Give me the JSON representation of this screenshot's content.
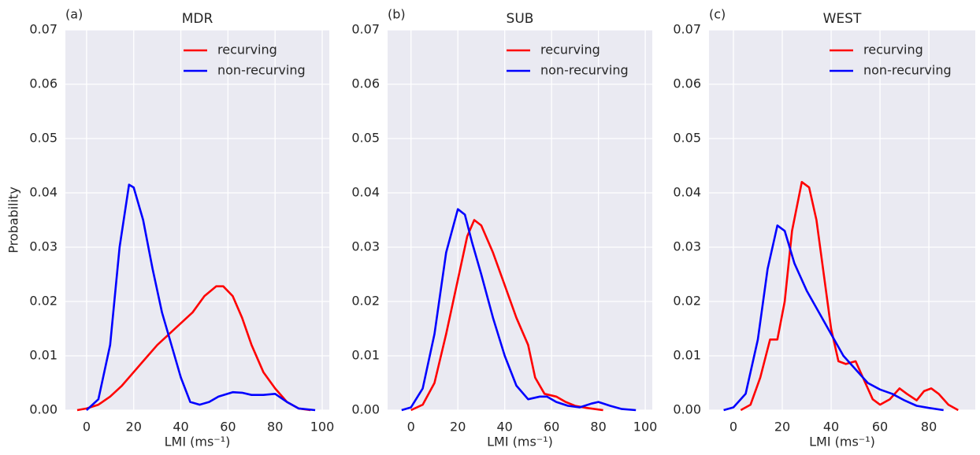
{
  "chart_data": [
    {
      "type": "line",
      "panel_label": "(a)",
      "title": "MDR",
      "xlabel": "LMI (ms⁻¹)",
      "ylabel": "Probability",
      "xlim": [
        -9,
        103
      ],
      "xticks": [
        0,
        20,
        40,
        60,
        80,
        100
      ],
      "ylim": [
        0,
        0.07
      ],
      "yticks": [
        {
          "value": 0,
          "label": "0.00"
        },
        0.01,
        0.02,
        0.03,
        0.04,
        0.05,
        0.06,
        0.07
      ],
      "grid": true,
      "legend": "upper right",
      "series": [
        {
          "name": "recurving",
          "color": "#ff0000",
          "x": [
            -4,
            0,
            5,
            10,
            15,
            20,
            25,
            30,
            35,
            40,
            45,
            50,
            55,
            58,
            62,
            66,
            70,
            75,
            80,
            85,
            90,
            95
          ],
          "values": [
            0,
            0.0003,
            0.001,
            0.0025,
            0.0045,
            0.007,
            0.0095,
            0.012,
            0.014,
            0.016,
            0.018,
            0.021,
            0.0228,
            0.0228,
            0.021,
            0.017,
            0.012,
            0.007,
            0.004,
            0.0015,
            0.0003,
            0
          ]
        },
        {
          "name": "non-recurving",
          "color": "#0000ff",
          "x": [
            0,
            5,
            10,
            14,
            18,
            20,
            24,
            28,
            32,
            36,
            40,
            44,
            48,
            52,
            56,
            62,
            66,
            70,
            75,
            80,
            85,
            90,
            97
          ],
          "values": [
            0,
            0.002,
            0.012,
            0.03,
            0.0415,
            0.041,
            0.035,
            0.026,
            0.018,
            0.012,
            0.006,
            0.0015,
            0.001,
            0.0015,
            0.0025,
            0.0033,
            0.0032,
            0.0028,
            0.0028,
            0.003,
            0.0015,
            0.0003,
            0
          ]
        }
      ]
    },
    {
      "type": "line",
      "panel_label": "(b)",
      "title": "SUB",
      "xlabel": "LMI (ms⁻¹)",
      "xlim": [
        -10,
        103
      ],
      "xticks": [
        0,
        20,
        40,
        60,
        80,
        100
      ],
      "ylim": [
        0,
        0.07
      ],
      "yticks": [
        {
          "value": 0,
          "label": "0.00"
        },
        0.01,
        0.02,
        0.03,
        0.04,
        0.05,
        0.06,
        0.07
      ],
      "grid": true,
      "legend": "upper right",
      "series": [
        {
          "name": "recurving",
          "color": "#ff0000",
          "x": [
            0,
            5,
            10,
            15,
            20,
            24,
            27,
            30,
            35,
            40,
            45,
            50,
            53,
            57,
            62,
            66,
            70,
            75,
            82
          ],
          "values": [
            0,
            0.001,
            0.005,
            0.014,
            0.024,
            0.032,
            0.035,
            0.034,
            0.029,
            0.023,
            0.017,
            0.012,
            0.006,
            0.003,
            0.0025,
            0.0015,
            0.0008,
            0.0004,
            0
          ]
        },
        {
          "name": "non-recurving",
          "color": "#0000ff",
          "x": [
            -4,
            0,
            5,
            10,
            15,
            20,
            23,
            26,
            30,
            35,
            40,
            45,
            50,
            55,
            58,
            62,
            67,
            72,
            77,
            80,
            85,
            90,
            96
          ],
          "values": [
            0,
            0.0005,
            0.004,
            0.014,
            0.029,
            0.037,
            0.036,
            0.031,
            0.025,
            0.017,
            0.01,
            0.0045,
            0.002,
            0.0025,
            0.0025,
            0.0015,
            0.0008,
            0.0005,
            0.0012,
            0.0015,
            0.0008,
            0.0002,
            0
          ]
        }
      ]
    },
    {
      "type": "line",
      "panel_label": "(c)",
      "title": "WEST",
      "xlabel": "LMI (ms⁻¹)",
      "xlim": [
        -10,
        99
      ],
      "xticks": [
        0,
        20,
        40,
        60,
        80
      ],
      "ylim": [
        0,
        0.07
      ],
      "yticks": [
        {
          "value": 0,
          "label": "0.00"
        },
        0.01,
        0.02,
        0.03,
        0.04,
        0.05,
        0.06,
        0.07
      ],
      "grid": true,
      "legend": "upper right",
      "series": [
        {
          "name": "recurving",
          "color": "#ff0000",
          "x": [
            3,
            7,
            11,
            15,
            18,
            21,
            24,
            28,
            31,
            34,
            37,
            40,
            43,
            46,
            50,
            53,
            57,
            60,
            64,
            68,
            71,
            75,
            78,
            81,
            84,
            88,
            92
          ],
          "values": [
            0,
            0.001,
            0.006,
            0.013,
            0.013,
            0.02,
            0.033,
            0.042,
            0.041,
            0.035,
            0.025,
            0.015,
            0.009,
            0.0085,
            0.009,
            0.006,
            0.002,
            0.001,
            0.002,
            0.004,
            0.003,
            0.0018,
            0.0035,
            0.004,
            0.003,
            0.001,
            0
          ]
        },
        {
          "name": "non-recurving",
          "color": "#0000ff",
          "x": [
            -4,
            0,
            5,
            10,
            14,
            18,
            21,
            25,
            30,
            35,
            40,
            45,
            50,
            55,
            60,
            65,
            70,
            75,
            80,
            86
          ],
          "values": [
            0,
            0.0005,
            0.003,
            0.013,
            0.026,
            0.034,
            0.033,
            0.027,
            0.022,
            0.018,
            0.014,
            0.01,
            0.0075,
            0.005,
            0.0038,
            0.003,
            0.0018,
            0.0008,
            0.0004,
            0
          ]
        }
      ]
    }
  ]
}
